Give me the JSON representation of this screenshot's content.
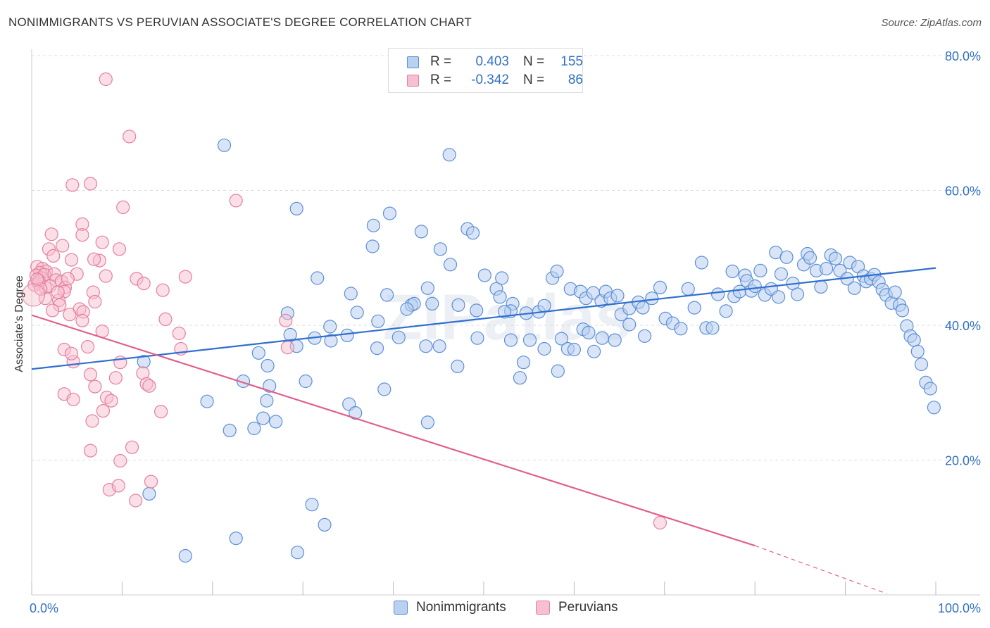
{
  "title": "NONIMMIGRANTS VS PERUVIAN ASSOCIATE'S DEGREE CORRELATION CHART",
  "source": "Source: ZipAtlas.com",
  "watermark": "ZIPatlas",
  "colors": {
    "blue": "#5b8fd6",
    "blue_fill": "#b9d0f0",
    "blue_line": "#2f6fcf",
    "pink": "#e57fa0",
    "pink_fill": "#f6c0d0",
    "pink_line": "#e0608c",
    "tick_label": "#3370c4",
    "grid": "#dddddd"
  },
  "legend": {
    "rows": [
      {
        "r_label": "R =",
        "r_value": "0.403",
        "n_label": "N =",
        "n_value": "155"
      },
      {
        "r_label": "R =",
        "r_value": "-0.342",
        "n_label": "N =",
        "n_value": "86"
      }
    ]
  },
  "bottom_legend": [
    "Nonimmigrants",
    "Peruvians"
  ],
  "chart_data": {
    "type": "scatter",
    "title": "NONIMMIGRANTS VS PERUVIAN ASSOCIATE'S DEGREE CORRELATION CHART",
    "xlabel": "",
    "ylabel": "Associate's Degree",
    "xlim": [
      0,
      100
    ],
    "ylim": [
      0,
      80
    ],
    "x_tick_labels": [
      "0.0%",
      "100.0%"
    ],
    "y_ticks": [
      20,
      40,
      60,
      80
    ],
    "y_tick_labels": [
      "20.0%",
      "40.0%",
      "60.0%",
      "80.0%"
    ],
    "grid": true,
    "legend_position": "top-center",
    "series": [
      {
        "name": "Nonimmigrants",
        "color": "#5b8fd6",
        "trend": {
          "x": [
            0,
            100
          ],
          "y": [
            33.5,
            48.5
          ]
        },
        "points": [
          [
            21.3,
            66.7
          ],
          [
            46.2,
            65.3
          ],
          [
            29.3,
            57.3
          ],
          [
            39.6,
            56.6
          ],
          [
            37.8,
            54.8
          ],
          [
            43.1,
            53.9
          ],
          [
            48.2,
            54.3
          ],
          [
            48.8,
            53.7
          ],
          [
            37.7,
            51.7
          ],
          [
            45.2,
            51.3
          ],
          [
            46.3,
            49.0
          ],
          [
            31.6,
            47.0
          ],
          [
            35.3,
            44.7
          ],
          [
            39.3,
            44.5
          ],
          [
            42.0,
            43.0
          ],
          [
            42.3,
            43.2
          ],
          [
            44.3,
            43.2
          ],
          [
            43.8,
            45.5
          ],
          [
            36.0,
            41.9
          ],
          [
            38.3,
            40.6
          ],
          [
            47.2,
            43.0
          ],
          [
            49.2,
            42.2
          ],
          [
            50.1,
            47.4
          ],
          [
            51.4,
            45.4
          ],
          [
            51.8,
            44.2
          ],
          [
            52.0,
            47.0
          ],
          [
            53.2,
            43.2
          ],
          [
            53.0,
            42.1
          ],
          [
            54.7,
            41.8
          ],
          [
            56.1,
            42.0
          ],
          [
            56.7,
            42.9
          ],
          [
            57.6,
            47.0
          ],
          [
            58.1,
            48.0
          ],
          [
            59.6,
            45.4
          ],
          [
            60.7,
            45.0
          ],
          [
            61.3,
            44.0
          ],
          [
            62.1,
            44.8
          ],
          [
            63.0,
            43.6
          ],
          [
            63.5,
            45.0
          ],
          [
            64.0,
            44.0
          ],
          [
            64.8,
            44.4
          ],
          [
            65.2,
            41.6
          ],
          [
            66.1,
            42.5
          ],
          [
            67.1,
            43.4
          ],
          [
            67.6,
            42.6
          ],
          [
            68.6,
            44.0
          ],
          [
            69.5,
            45.6
          ],
          [
            70.1,
            41.0
          ],
          [
            70.9,
            40.3
          ],
          [
            71.8,
            39.5
          ],
          [
            72.6,
            45.4
          ],
          [
            73.3,
            42.6
          ],
          [
            74.1,
            49.3
          ],
          [
            74.6,
            39.6
          ],
          [
            75.3,
            39.6
          ],
          [
            75.9,
            44.6
          ],
          [
            76.8,
            42.1
          ],
          [
            77.5,
            48.0
          ],
          [
            77.7,
            44.3
          ],
          [
            78.3,
            45.0
          ],
          [
            78.9,
            47.4
          ],
          [
            79.1,
            46.6
          ],
          [
            79.6,
            45.1
          ],
          [
            80.0,
            45.8
          ],
          [
            80.6,
            48.1
          ],
          [
            81.1,
            44.5
          ],
          [
            81.8,
            45.4
          ],
          [
            82.3,
            50.8
          ],
          [
            82.6,
            44.2
          ],
          [
            82.9,
            47.6
          ],
          [
            83.5,
            50.1
          ],
          [
            84.2,
            46.2
          ],
          [
            84.7,
            44.6
          ],
          [
            85.4,
            49.0
          ],
          [
            85.8,
            50.6
          ],
          [
            86.1,
            50.0
          ],
          [
            86.8,
            48.1
          ],
          [
            87.3,
            45.7
          ],
          [
            87.9,
            48.4
          ],
          [
            88.4,
            50.4
          ],
          [
            88.9,
            49.9
          ],
          [
            89.4,
            48.1
          ],
          [
            90.2,
            46.9
          ],
          [
            90.5,
            49.3
          ],
          [
            91.0,
            45.5
          ],
          [
            91.4,
            48.7
          ],
          [
            92.0,
            47.3
          ],
          [
            92.3,
            46.5
          ],
          [
            92.8,
            46.9
          ],
          [
            93.2,
            47.5
          ],
          [
            93.7,
            46.4
          ],
          [
            94.1,
            45.3
          ],
          [
            94.5,
            44.5
          ],
          [
            95.1,
            43.3
          ],
          [
            95.5,
            44.9
          ],
          [
            96.0,
            43.0
          ],
          [
            96.3,
            42.2
          ],
          [
            96.8,
            39.9
          ],
          [
            97.2,
            38.4
          ],
          [
            97.6,
            37.8
          ],
          [
            98.0,
            36.1
          ],
          [
            98.4,
            34.2
          ],
          [
            98.9,
            31.5
          ],
          [
            99.4,
            30.6
          ],
          [
            99.8,
            27.8
          ],
          [
            17.0,
            5.8
          ],
          [
            22.6,
            8.4
          ],
          [
            29.4,
            6.3
          ],
          [
            12.4,
            34.6
          ],
          [
            13.0,
            15.0
          ],
          [
            19.4,
            28.7
          ],
          [
            21.9,
            24.4
          ],
          [
            24.6,
            24.7
          ],
          [
            25.6,
            26.2
          ],
          [
            26.0,
            28.8
          ],
          [
            26.3,
            31.0
          ],
          [
            27.0,
            25.7
          ],
          [
            28.3,
            41.8
          ],
          [
            28.6,
            38.6
          ],
          [
            29.3,
            36.9
          ],
          [
            30.3,
            31.7
          ],
          [
            31.0,
            13.4
          ],
          [
            32.4,
            10.4
          ],
          [
            31.3,
            38.1
          ],
          [
            33.0,
            39.8
          ],
          [
            35.1,
            28.3
          ],
          [
            35.8,
            27.0
          ],
          [
            38.2,
            36.6
          ],
          [
            39.0,
            30.5
          ],
          [
            40.6,
            38.2
          ],
          [
            41.5,
            42.4
          ],
          [
            43.6,
            36.9
          ],
          [
            43.8,
            25.6
          ],
          [
            45.1,
            36.9
          ],
          [
            47.1,
            33.9
          ],
          [
            49.3,
            38.1
          ],
          [
            52.3,
            42.0
          ],
          [
            53.0,
            37.8
          ],
          [
            54.4,
            34.5
          ],
          [
            54.0,
            32.2
          ],
          [
            55.1,
            37.8
          ],
          [
            56.7,
            36.5
          ],
          [
            58.2,
            33.2
          ],
          [
            58.6,
            38.0
          ],
          [
            59.3,
            36.5
          ],
          [
            60.0,
            36.4
          ],
          [
            61.0,
            39.4
          ],
          [
            61.6,
            38.9
          ],
          [
            62.2,
            36.1
          ],
          [
            63.1,
            38.1
          ],
          [
            64.5,
            37.8
          ],
          [
            66.1,
            40.1
          ],
          [
            67.8,
            38.4
          ],
          [
            25.1,
            35.9
          ],
          [
            26.1,
            34.0
          ],
          [
            23.4,
            31.7
          ],
          [
            34.9,
            38.5
          ],
          [
            33.1,
            37.7
          ]
        ]
      },
      {
        "name": "Peruvians",
        "color": "#e57fa0",
        "trend": {
          "x": [
            0,
            80
          ],
          "y": [
            41.5,
            7.3
          ],
          "dashed_to": {
            "x": 100,
            "y": -1.2
          }
        },
        "points": [
          [
            8.2,
            76.5
          ],
          [
            10.8,
            68.0
          ],
          [
            4.5,
            60.8
          ],
          [
            6.5,
            61.0
          ],
          [
            10.1,
            57.5
          ],
          [
            22.6,
            58.5
          ],
          [
            2.2,
            53.5
          ],
          [
            5.6,
            55.0
          ],
          [
            5.6,
            53.4
          ],
          [
            7.8,
            52.3
          ],
          [
            9.7,
            51.3
          ],
          [
            1.9,
            51.3
          ],
          [
            3.4,
            51.8
          ],
          [
            2.4,
            50.3
          ],
          [
            4.4,
            49.7
          ],
          [
            7.5,
            49.6
          ],
          [
            0.6,
            48.7
          ],
          [
            1.2,
            48.4
          ],
          [
            1.6,
            48.0
          ],
          [
            0.9,
            47.8
          ],
          [
            0.5,
            47.4
          ],
          [
            1.1,
            47.0
          ],
          [
            1.4,
            47.5
          ],
          [
            2.5,
            47.6
          ],
          [
            2.7,
            46.7
          ],
          [
            3.3,
            46.5
          ],
          [
            0.3,
            46.0
          ],
          [
            0.8,
            46.2
          ],
          [
            1.5,
            45.6
          ],
          [
            2.0,
            45.8
          ],
          [
            3.7,
            45.6
          ],
          [
            5.0,
            47.6
          ],
          [
            8.2,
            47.3
          ],
          [
            11.6,
            46.9
          ],
          [
            17.0,
            47.2
          ],
          [
            12.4,
            46.2
          ],
          [
            3.6,
            45.0
          ],
          [
            4.0,
            46.9
          ],
          [
            6.8,
            44.9
          ],
          [
            14.5,
            45.2
          ],
          [
            3.0,
            43.7
          ],
          [
            3.1,
            43.0
          ],
          [
            7.0,
            43.5
          ],
          [
            5.3,
            42.4
          ],
          [
            5.7,
            42.0
          ],
          [
            14.8,
            40.9
          ],
          [
            5.6,
            40.7
          ],
          [
            28.1,
            40.7
          ],
          [
            7.8,
            39.1
          ],
          [
            16.3,
            38.8
          ],
          [
            28.3,
            36.7
          ],
          [
            3.6,
            36.4
          ],
          [
            4.6,
            34.6
          ],
          [
            6.2,
            36.8
          ],
          [
            16.5,
            36.5
          ],
          [
            9.8,
            34.5
          ],
          [
            4.4,
            35.8
          ],
          [
            6.5,
            32.7
          ],
          [
            12.3,
            32.9
          ],
          [
            12.7,
            31.3
          ],
          [
            13.0,
            31.0
          ],
          [
            9.3,
            32.2
          ],
          [
            7.0,
            30.9
          ],
          [
            8.3,
            29.3
          ],
          [
            3.6,
            29.8
          ],
          [
            4.6,
            29.0
          ],
          [
            8.8,
            28.8
          ],
          [
            7.9,
            27.3
          ],
          [
            14.3,
            27.2
          ],
          [
            6.7,
            25.8
          ],
          [
            6.5,
            21.4
          ],
          [
            11.1,
            21.9
          ],
          [
            9.8,
            19.9
          ],
          [
            8.6,
            15.6
          ],
          [
            9.6,
            16.2
          ],
          [
            11.5,
            14.0
          ],
          [
            13.2,
            16.8
          ],
          [
            69.5,
            10.7
          ],
          [
            1.5,
            44.0
          ],
          [
            2.3,
            42.2
          ],
          [
            4.2,
            41.6
          ],
          [
            0.8,
            46.6
          ],
          [
            1.0,
            45.4
          ],
          [
            0.6,
            46.8
          ],
          [
            2.9,
            44.9
          ],
          [
            6.9,
            49.8
          ]
        ]
      }
    ]
  }
}
